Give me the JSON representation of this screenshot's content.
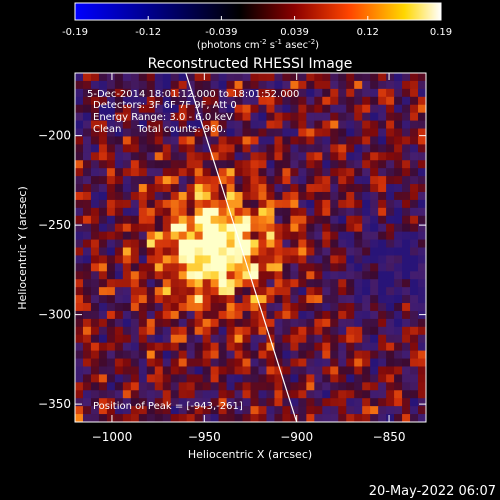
{
  "colorbar": {
    "ticks": [
      "-0.19",
      "-0.12",
      "-0.039",
      "0.039",
      "0.12",
      "0.19"
    ],
    "units_prefix": "(photons cm",
    "units_exp1": "-2",
    "units_mid": " s",
    "units_exp2": "-1",
    "units_tail": " asec",
    "units_exp3": "-2",
    "units_close": ")",
    "level_min": -0.19,
    "level_max": 0.19,
    "colormap": [
      "#0000ff",
      "#000000",
      "#8b0000",
      "#ff4500",
      "#ffd700",
      "#ffffff"
    ]
  },
  "title": "Reconstructed RHESSI Image",
  "annotations": {
    "time_range": "5-Dec-2014 18:01:12.000 to 18:01:52.000",
    "detectors": "Detectors: 3F 6F 7F 9F, Att 0",
    "energy": "Energy Range: 3.0 - 6.0 keV",
    "algorithm": "Clean     Total counts: 960.",
    "peak": "Position of Peak = [-943,-261]"
  },
  "axes": {
    "xlabel": "Heliocentric X (arcsec)",
    "ylabel": "Heliocentric Y (arcsec)",
    "x_ticks": [
      -1000,
      -950,
      -900,
      -850
    ],
    "y_ticks": [
      -200,
      -250,
      -300,
      -350
    ],
    "xlim": [
      -1020,
      -830
    ],
    "ylim": [
      -360,
      -165
    ]
  },
  "source": {
    "peak_x": -943,
    "peak_y": -261
  },
  "limb_line": {
    "x1": -960,
    "y1": -165,
    "x2": -900,
    "y2": -360
  },
  "footer": {
    "timestamp": "20-May-2022 06:07"
  }
}
